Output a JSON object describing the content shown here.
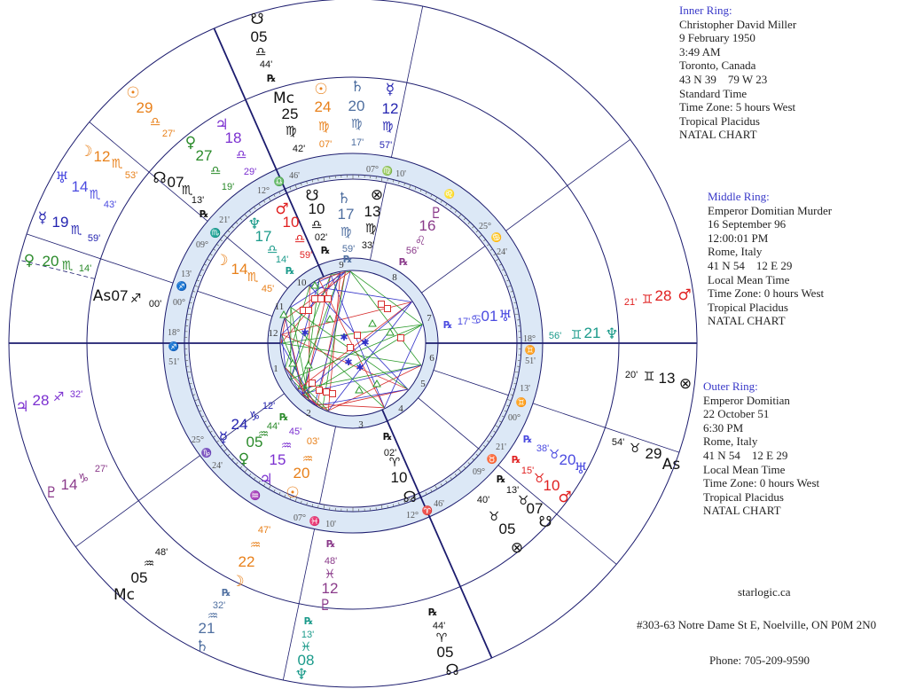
{
  "panels": {
    "inner": {
      "title": "Inner Ring:",
      "lines": [
        "Christopher David Miller",
        "9 February 1950",
        "3:49 AM",
        "Toronto, Canada",
        "43 N 39    79 W 23",
        "Standard Time",
        "Time Zone: 5 hours West",
        "Tropical Placidus",
        "NATAL CHART"
      ]
    },
    "middle": {
      "title": "Middle Ring:",
      "lines": [
        "Emperor Domitian Murder",
        "16 September 96",
        "12:00:01 PM",
        "Rome, Italy",
        "41 N 54    12 E 29",
        "Local Mean Time",
        "Time Zone: 0 hours West",
        "Tropical Placidus",
        "NATAL CHART"
      ]
    },
    "outer": {
      "title": "Outer Ring:",
      "lines": [
        "Emperor Domitian",
        "22 October 51",
        "6:30 PM",
        "Rome, Italy",
        "41 N 54    12 E 29",
        "Local Mean Time",
        "Time Zone: 0 hours West",
        "Tropical Placidus",
        "NATAL CHART"
      ]
    }
  },
  "footer": {
    "site": "starlogic.ca",
    "address": "#303-63 Notre Dame St E, Noelville, ON P0M 2N0",
    "phone": "Phone: 705-209-9590"
  },
  "colors": {
    "lines": "#1c1c6e",
    "band": "#dce8f6",
    "sun": "#e8801a",
    "moon": "#e8801a",
    "mercury": "#2323b0",
    "venus": "#2a8a2a",
    "mars": "#e02020",
    "jupiter": "#7b2fd0",
    "saturn": "#4f6fa0",
    "uranus": "#4a4ae0",
    "neptune": "#1a9a8a",
    "pluto": "#8a3a8a",
    "point": "#111111"
  },
  "chart": {
    "outer": [
      {
        "glyph": "☋",
        "deg": "05",
        "sign": "♎",
        "min": "44'",
        "rx": "℞"
      },
      {
        "glyph": "☉",
        "deg": "29",
        "sign": "♎",
        "min": "27'"
      },
      {
        "glyph": "☽",
        "deg": "12",
        "sign": "♏",
        "min": "53'"
      },
      {
        "glyph": "♅",
        "deg": "14",
        "sign": "♏",
        "min": "43'"
      },
      {
        "glyph": "☿",
        "deg": "19",
        "sign": "♏",
        "min": "59'"
      },
      {
        "glyph": "♀",
        "deg": "20",
        "sign": "♏",
        "min": "14'"
      },
      {
        "glyph": "♃",
        "deg": "28",
        "sign": "♐",
        "min": "32'"
      },
      {
        "glyph": "♇",
        "deg": "14",
        "sign": "♑",
        "min": "27'"
      },
      {
        "glyph": "Mc",
        "deg": "05",
        "sign": "♒",
        "min": "48'"
      },
      {
        "glyph": "♄",
        "deg": "21",
        "sign": "♒",
        "min": "32'",
        "rx": "℞"
      },
      {
        "glyph": "♆",
        "deg": "08",
        "sign": "♓",
        "min": "13'",
        "rx": "℞"
      },
      {
        "glyph": "☊",
        "deg": "05",
        "sign": "♈",
        "min": "44'",
        "rx": "℞"
      },
      {
        "glyph": "As",
        "deg": "29",
        "sign": "♉",
        "min": "54'"
      },
      {
        "glyph": "⊗",
        "deg": "13",
        "sign": "♊",
        "min": "20'"
      },
      {
        "glyph": "♂",
        "deg": "28",
        "sign": "♊",
        "min": "21'"
      }
    ],
    "middle": [
      {
        "glyph": "Mc",
        "deg": "25",
        "sign": "♍",
        "min": "42'"
      },
      {
        "glyph": "☉",
        "deg": "24",
        "sign": "♍",
        "min": "07'"
      },
      {
        "glyph": "♄",
        "deg": "20",
        "sign": "♍",
        "min": "17'"
      },
      {
        "glyph": "☿",
        "deg": "12",
        "sign": "♍",
        "min": "57'"
      },
      {
        "glyph": "♃",
        "deg": "18",
        "sign": "♎",
        "min": "29'"
      },
      {
        "glyph": "♀",
        "deg": "27",
        "sign": "♎",
        "min": "19'"
      },
      {
        "glyph": "☊",
        "deg": "07",
        "sign": "♏",
        "min": "13'",
        "rx": "℞"
      },
      {
        "glyph": "As",
        "deg": "07",
        "sign": "♐",
        "min": "00'"
      },
      {
        "glyph": "☽",
        "deg": "22",
        "sign": "♒",
        "min": "47'"
      },
      {
        "glyph": "♇",
        "deg": "12",
        "sign": "♓",
        "min": "48'",
        "rx": "℞"
      },
      {
        "glyph": "⊗",
        "deg": "05",
        "sign": "♉",
        "min": "40'"
      },
      {
        "glyph": "☋",
        "deg": "07",
        "sign": "♉",
        "min": "13'",
        "rx": "℞"
      },
      {
        "glyph": "♂",
        "deg": "10",
        "sign": "♉",
        "min": "15'",
        "rx": "℞"
      },
      {
        "glyph": "♅",
        "deg": "20",
        "sign": "♉",
        "min": "38'",
        "rx": "℞"
      },
      {
        "glyph": "♆",
        "deg": "21",
        "sign": "♊",
        "min": "56'"
      }
    ],
    "inner": [
      {
        "glyph": "♂",
        "deg": "10",
        "sign": "♎",
        "min": "59'"
      },
      {
        "glyph": "☋",
        "deg": "10",
        "sign": "♎",
        "min": "02'",
        "rx": "℞"
      },
      {
        "glyph": "♄",
        "deg": "17",
        "sign": "♍",
        "min": "59'",
        "rx": "℞"
      },
      {
        "glyph": "⊗",
        "deg": "13",
        "sign": "♍",
        "min": "33'"
      },
      {
        "glyph": "♆",
        "deg": "17",
        "sign": "♎",
        "min": "14'",
        "rx": "℞"
      },
      {
        "glyph": "☽",
        "deg": "14",
        "sign": "♏",
        "min": "45'"
      },
      {
        "glyph": "♇",
        "deg": "16",
        "sign": "♌",
        "min": "56'",
        "rx": "℞"
      },
      {
        "glyph": "♅",
        "deg": "01",
        "sign": "♋",
        "min": "17'",
        "rx": "℞"
      },
      {
        "glyph": "☊",
        "deg": "10",
        "sign": "♈",
        "min": "02'",
        "rx": "℞"
      },
      {
        "glyph": "☿",
        "deg": "24",
        "sign": "♑",
        "min": "12'"
      },
      {
        "glyph": "♀",
        "deg": "05",
        "sign": "♒",
        "min": "44'",
        "rx": "℞"
      },
      {
        "glyph": "♃",
        "deg": "15",
        "sign": "♒",
        "min": "45'"
      },
      {
        "glyph": "☉",
        "deg": "20",
        "sign": "♒",
        "min": "03'"
      }
    ],
    "cusps": [
      {
        "deg": "12°",
        "sign": "♎",
        "min": "46'"
      },
      {
        "deg": "07°",
        "sign": "♍",
        "min": "10'"
      },
      {
        "sign": "♌"
      },
      {
        "deg": "25°",
        "sign": "♋",
        "min": "24'"
      },
      {
        "deg": "18°",
        "sign": "♊",
        "min": "51'"
      },
      {
        "deg": "00°",
        "sign": "♊",
        "min": "13'"
      },
      {
        "deg": "09°",
        "sign": "♉",
        "min": "21'"
      },
      {
        "deg": "12°",
        "sign": "♈",
        "min": "46'"
      },
      {
        "deg": "07°",
        "sign": "♓",
        "min": "10'"
      },
      {
        "sign": "♒"
      },
      {
        "deg": "25°",
        "sign": "♑",
        "min": "24'"
      },
      {
        "deg": "18°",
        "sign": "♐",
        "min": "51'"
      },
      {
        "deg": "00°",
        "sign": "♐",
        "min": "13'"
      },
      {
        "deg": "09°",
        "sign": "♏",
        "min": "21'"
      }
    ],
    "houses": [
      "1",
      "2",
      "3",
      "4",
      "5",
      "6",
      "7",
      "8",
      "9",
      "10",
      "11",
      "12"
    ]
  }
}
